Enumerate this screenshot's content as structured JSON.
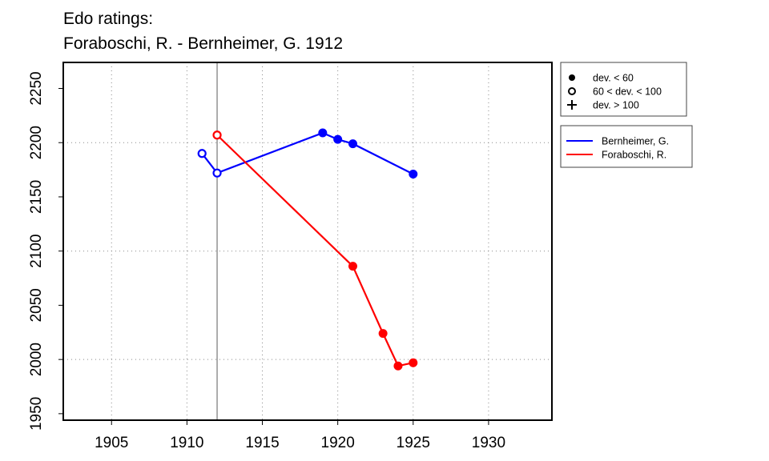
{
  "title": {
    "line1": "Edo ratings:",
    "line2": "Foraboschi, R. - Bernheimer, G. 1912"
  },
  "chart_data": {
    "type": "line",
    "title": "Edo ratings: Foraboschi, R. - Bernheimer, G. 1912",
    "xlabel": "",
    "ylabel": "",
    "xlim": [
      1901.8,
      1934.2
    ],
    "ylim": [
      1944,
      2274
    ],
    "x_ticks": [
      1905,
      1910,
      1915,
      1920,
      1925,
      1930
    ],
    "y_ticks": [
      1950,
      2000,
      2050,
      2100,
      2150,
      2200,
      2250
    ],
    "grid": true,
    "reference_line_x": 1912,
    "legend_symbols": [
      {
        "symbol": "filled-circle",
        "label": "dev. < 60"
      },
      {
        "symbol": "open-circle",
        "label": "60 < dev. < 100"
      },
      {
        "symbol": "plus",
        "label": "dev. > 100"
      }
    ],
    "series": [
      {
        "name": "Bernheimer, G.",
        "color": "#0000ff",
        "points": [
          {
            "x": 1911,
            "y": 2190,
            "marker": "open-circle"
          },
          {
            "x": 1912,
            "y": 2172,
            "marker": "open-circle"
          },
          {
            "x": 1919,
            "y": 2209,
            "marker": "filled-circle"
          },
          {
            "x": 1920,
            "y": 2203,
            "marker": "filled-circle"
          },
          {
            "x": 1921,
            "y": 2199,
            "marker": "filled-circle"
          },
          {
            "x": 1925,
            "y": 2171,
            "marker": "filled-circle"
          }
        ]
      },
      {
        "name": "Foraboschi, R.",
        "color": "#ff0000",
        "points": [
          {
            "x": 1912,
            "y": 2207,
            "marker": "open-circle"
          },
          {
            "x": 1921,
            "y": 2086,
            "marker": "filled-circle"
          },
          {
            "x": 1923,
            "y": 2024,
            "marker": "filled-circle"
          },
          {
            "x": 1924,
            "y": 1994,
            "marker": "filled-circle"
          },
          {
            "x": 1925,
            "y": 1997,
            "marker": "filled-circle"
          }
        ]
      }
    ]
  }
}
